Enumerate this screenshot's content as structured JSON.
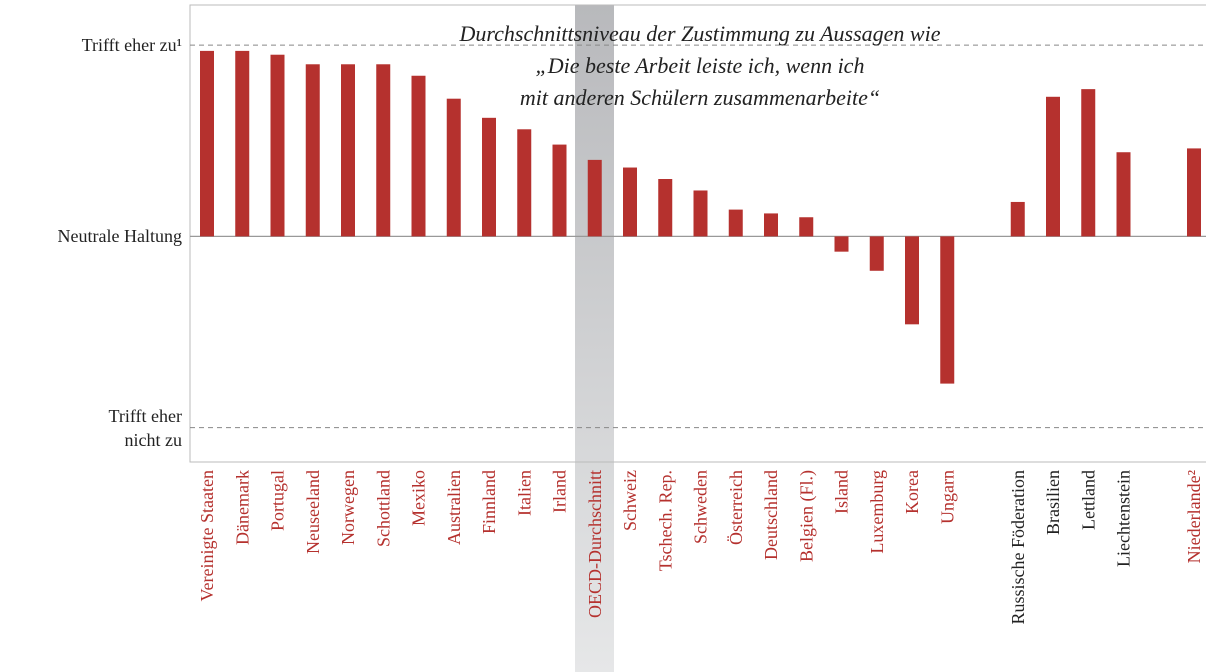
{
  "chart_data": {
    "type": "bar",
    "title": "Durchschnittsniveau der Zustimmung zu Aussagen wie\n„Die beste Arbeit leiste ich, wenn ich\nmit anderen Schülern zusammenarbeite“",
    "categories": [
      "Vereinigte Staaten",
      "Dänemark",
      "Portugal",
      "Neuseeland",
      "Norwegen",
      "Schottland",
      "Mexiko",
      "Australien",
      "Finnland",
      "Italien",
      "Irland",
      "OECD-Durchschnitt",
      "Schweiz",
      "Tschech. Rep.",
      "Schweden",
      "Österreich",
      "Deutschland",
      "Belgien (Fl.)",
      "Island",
      "Luxemburg",
      "Korea",
      "Ungarn",
      null,
      "Russische Föderation",
      "Brasilien",
      "Lettland",
      "Liechtenstein",
      null,
      "Niederlande²"
    ],
    "values": [
      0.97,
      0.97,
      0.95,
      0.9,
      0.9,
      0.9,
      0.84,
      0.72,
      0.62,
      0.56,
      0.48,
      0.4,
      0.36,
      0.3,
      0.24,
      0.14,
      0.12,
      0.1,
      -0.08,
      -0.18,
      -0.46,
      -0.77,
      null,
      0.18,
      0.73,
      0.77,
      0.44,
      null,
      0.46
    ],
    "label_colors": [
      "#b5312e",
      "#b5312e",
      "#b5312e",
      "#b5312e",
      "#b5312e",
      "#b5312e",
      "#b5312e",
      "#b5312e",
      "#b5312e",
      "#b5312e",
      "#b5312e",
      "#b5312e",
      "#b5312e",
      "#b5312e",
      "#b5312e",
      "#b5312e",
      "#b5312e",
      "#b5312e",
      "#b5312e",
      "#b5312e",
      "#b5312e",
      "#b5312e",
      "#b5312e",
      "#222222",
      "#222222",
      "#222222",
      "#222222",
      "#b5312e",
      "#b5312e"
    ],
    "color": "#b5312e",
    "ylim": [
      -1.18,
      1.21
    ],
    "yticks": [
      {
        "value": -1,
        "label": "Trifft eher\nnicht zu"
      },
      {
        "value": 0,
        "label": "Neutrale Haltung"
      },
      {
        "value": 1,
        "label": "Trifft eher zu¹"
      }
    ],
    "grid": true
  }
}
